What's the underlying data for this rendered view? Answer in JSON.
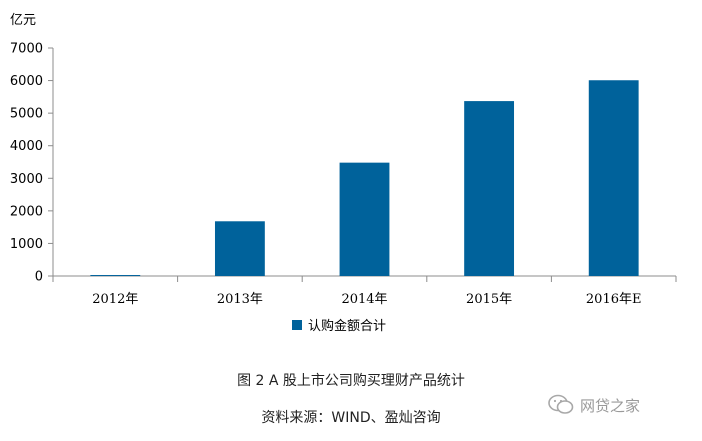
{
  "chart_data": {
    "type": "bar",
    "unit_label": "亿元",
    "categories": [
      "2012年",
      "2013年",
      "2014年",
      "2015年",
      "2016年E"
    ],
    "series": [
      {
        "name": "认购金额合计",
        "values": [
          30,
          1680,
          3480,
          5370,
          6010
        ]
      }
    ],
    "ylim": [
      0,
      7000
    ],
    "yticks": [
      0,
      1000,
      2000,
      3000,
      4000,
      5000,
      6000,
      7000
    ],
    "grid": false,
    "legend": "bottom-center",
    "bar_color": "#00629b"
  },
  "caption": {
    "title": "图 2 A 股上市公司购买理财产品统计",
    "source": "资料来源：WIND、盈灿咨询"
  },
  "watermark": {
    "text": "网贷之家",
    "icon": "wechat-icon"
  }
}
